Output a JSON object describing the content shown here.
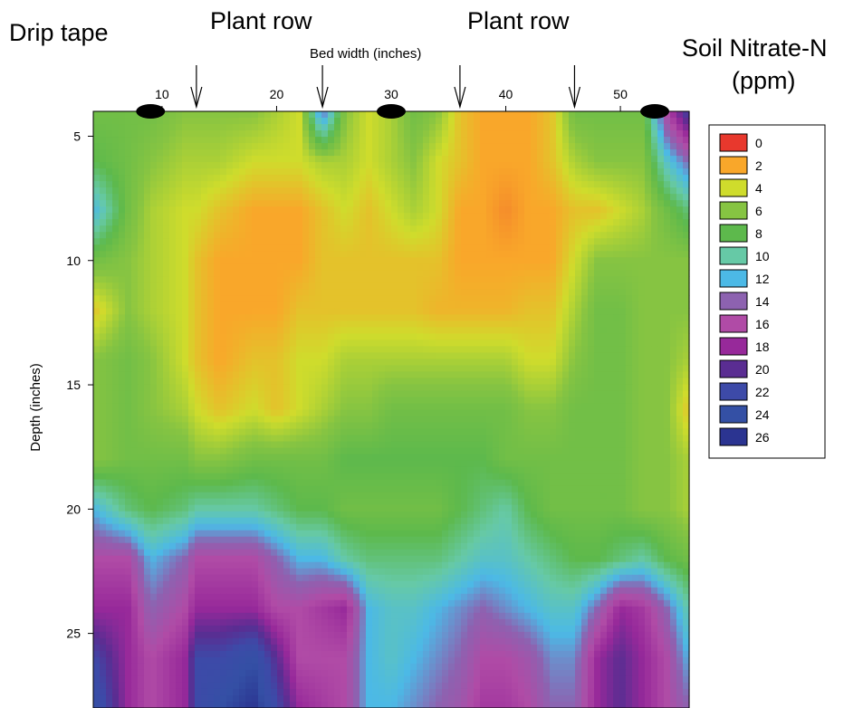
{
  "chart_data": {
    "type": "heatmap",
    "title": "",
    "xlabel": "Bed width (inches)",
    "ylabel": "Depth (inches)",
    "xlim": [
      4,
      56
    ],
    "ylim": [
      4,
      28
    ],
    "x_ticks": [
      10,
      20,
      30,
      40,
      50
    ],
    "y_ticks": [
      5,
      10,
      15,
      20,
      25
    ],
    "legend": {
      "title_line1": "Soil Nitrate-N",
      "title_line2": "(ppm)",
      "placement": "right",
      "levels": [
        {
          "label": "0",
          "color": "#e8382d"
        },
        {
          "label": "2",
          "color": "#f9a72a"
        },
        {
          "label": "4",
          "color": "#cfdc2c"
        },
        {
          "label": "6",
          "color": "#86c442"
        },
        {
          "label": "8",
          "color": "#5db94c"
        },
        {
          "label": "10",
          "color": "#66c9a6"
        },
        {
          "label": "12",
          "color": "#4cb9e6"
        },
        {
          "label": "14",
          "color": "#8d62b0"
        },
        {
          "label": "16",
          "color": "#b04ba6"
        },
        {
          "label": "18",
          "color": "#97299a"
        },
        {
          "label": "20",
          "color": "#5a2d92"
        },
        {
          "label": "22",
          "color": "#3d4aa8"
        },
        {
          "label": "24",
          "color": "#3450a5"
        },
        {
          "label": "26",
          "color": "#2b3491"
        }
      ]
    },
    "annotations": {
      "drip_tape_label": "Drip tape",
      "plant_row_label_1": "Plant row",
      "plant_row_label_2": "Plant row",
      "drip_tape_positions_x": [
        9,
        30,
        53
      ],
      "plant_row_arrow_positions_x": [
        13,
        24,
        36,
        46
      ]
    },
    "x": [
      4,
      7,
      9,
      12,
      13,
      15,
      18,
      20,
      22,
      24,
      26,
      28,
      30,
      32,
      34,
      36,
      38,
      40,
      42,
      44,
      46,
      48,
      50,
      52,
      54,
      56
    ],
    "y": [
      4,
      6,
      8,
      10,
      12,
      14,
      16,
      18,
      20,
      22,
      24,
      26,
      28
    ],
    "z": [
      [
        7,
        7,
        7,
        6,
        6,
        6,
        6,
        5,
        4,
        14,
        6,
        4,
        5,
        7,
        6,
        3,
        2,
        2,
        2,
        3,
        7,
        7,
        7,
        7,
        16,
        22
      ],
      [
        8,
        7,
        6,
        5,
        5,
        5,
        4,
        4,
        4,
        5,
        5,
        4,
        5,
        6,
        4,
        3,
        2,
        2,
        2,
        3,
        5,
        6,
        6,
        6,
        11,
        14
      ],
      [
        12,
        7,
        5,
        4,
        4,
        3,
        2,
        2,
        2,
        3,
        4,
        3,
        4,
        5,
        4,
        2,
        2,
        1.5,
        2,
        2,
        3,
        3,
        4,
        5,
        7,
        9
      ],
      [
        7,
        6,
        5,
        4,
        3,
        2,
        2,
        2,
        2,
        3,
        3,
        3,
        3,
        3,
        3,
        2,
        2,
        2,
        2,
        2,
        4,
        6,
        6,
        6,
        6,
        6
      ],
      [
        3,
        6,
        5,
        4,
        3,
        2,
        2,
        2,
        3,
        3,
        3,
        3,
        3,
        3,
        2.5,
        2.5,
        2.5,
        2.5,
        3,
        3,
        5,
        7,
        7,
        6,
        6,
        6
      ],
      [
        6,
        7,
        6,
        4,
        3,
        2,
        3,
        3,
        4,
        4,
        5,
        5,
        5,
        5,
        5,
        5,
        5,
        5,
        4,
        4,
        6,
        7,
        7,
        6,
        6,
        5
      ],
      [
        6,
        7,
        6,
        5,
        4,
        3,
        4,
        3,
        4,
        5,
        6,
        6,
        7,
        7,
        7,
        7,
        7,
        7,
        6,
        6,
        7,
        7,
        7,
        6,
        6,
        3
      ],
      [
        6,
        7,
        7,
        7,
        6,
        6,
        7,
        7,
        7,
        7,
        8,
        8,
        8,
        8,
        8,
        8,
        8,
        7,
        7,
        7,
        7,
        7,
        7,
        6,
        6,
        5
      ],
      [
        12,
        9,
        8,
        9,
        10,
        10,
        10,
        9,
        8,
        8,
        7,
        7,
        7,
        7,
        7,
        8,
        9,
        10,
        8,
        7,
        7,
        7,
        7,
        6,
        6,
        5
      ],
      [
        16,
        16,
        12,
        14,
        16,
        16,
        16,
        14,
        12,
        12,
        10,
        9,
        9,
        9,
        9,
        10,
        11,
        11,
        10,
        9,
        8,
        8,
        9,
        10,
        8,
        7
      ],
      [
        18,
        18,
        14,
        16,
        18,
        18,
        18,
        16,
        16,
        17,
        18,
        12,
        11,
        11,
        12,
        13,
        14,
        13,
        12,
        11,
        11,
        14,
        18,
        17,
        14,
        10
      ],
      [
        22,
        18,
        16,
        18,
        22,
        22,
        24,
        20,
        16,
        16,
        16,
        12,
        11,
        12,
        13,
        14,
        16,
        16,
        15,
        13,
        13,
        18,
        20,
        18,
        16,
        12
      ],
      [
        24,
        18,
        16,
        18,
        22,
        24,
        26,
        22,
        18,
        17,
        16,
        12,
        12,
        13,
        14,
        15,
        17,
        17,
        16,
        14,
        14,
        18,
        20,
        18,
        16,
        14
      ]
    ]
  }
}
